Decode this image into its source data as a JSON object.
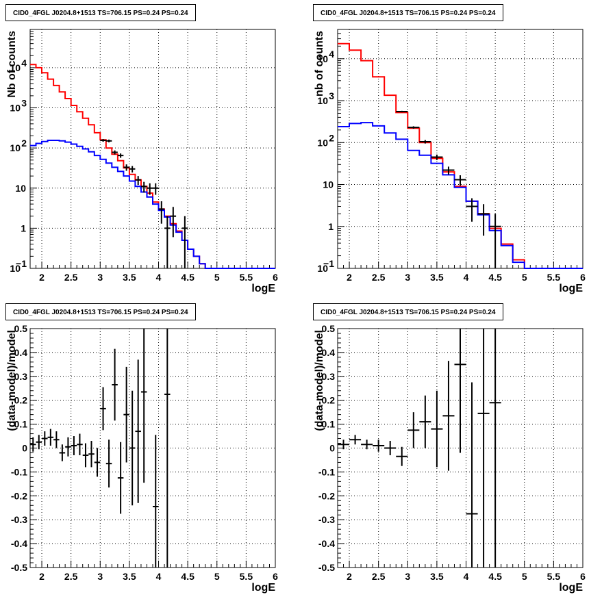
{
  "chart_data": [
    {
      "type": "line",
      "title": "CID0_4FGL J0204.8+1513 TS=706.15 PS=0.24 PS=0.24",
      "xlabel": "logE",
      "ylabel": "Nb of counts",
      "xlim": [
        1.8,
        6
      ],
      "ylim": [
        0.1,
        90000
      ],
      "yscale": "log",
      "grid": true,
      "xticks": [
        "2",
        "2.5",
        "3",
        "3.5",
        "4",
        "4.5",
        "5",
        "5.5",
        "6"
      ],
      "binwidth": 0.1,
      "series": [
        {
          "color": "#ff0000",
          "kind": "hist",
          "x": [
            1.8,
            1.9,
            2.0,
            2.1,
            2.2,
            2.3,
            2.4,
            2.5,
            2.6,
            2.7,
            2.8,
            2.9,
            3.0,
            3.1,
            3.2,
            3.3,
            3.4,
            3.5,
            3.6,
            3.7,
            3.8,
            3.9,
            4.0,
            4.1,
            4.2,
            4.3,
            4.4,
            4.5,
            4.6,
            4.7,
            4.8,
            4.9,
            5.0,
            5.1,
            5.2,
            5.3,
            5.4,
            5.5,
            5.6,
            5.7,
            5.8,
            5.9
          ],
          "values": [
            12000,
            10000,
            7500,
            5200,
            3600,
            2500,
            1700,
            1150,
            800,
            550,
            380,
            240,
            160,
            100,
            70,
            48,
            32,
            22,
            16,
            11,
            7.5,
            4.5,
            3,
            2,
            1.3,
            0.85,
            0.5,
            0.3,
            0.2,
            0.13,
            0.08,
            0.08,
            0.08,
            0.08,
            0.08,
            0.08,
            0.08,
            0.08,
            0.08,
            0.08,
            0.08,
            0.08
          ]
        },
        {
          "color": "#0000ff",
          "kind": "hist",
          "x": [
            1.8,
            1.9,
            2.0,
            2.1,
            2.2,
            2.3,
            2.4,
            2.5,
            2.6,
            2.7,
            2.8,
            2.9,
            3.0,
            3.1,
            3.2,
            3.3,
            3.4,
            3.5,
            3.6,
            3.7,
            3.8,
            3.9,
            4.0,
            4.1,
            4.2,
            4.3,
            4.4,
            4.5,
            4.6,
            4.7,
            4.8,
            4.9,
            5.0,
            5.1,
            5.2,
            5.3,
            5.4,
            5.5,
            5.6,
            5.7,
            5.8,
            5.9
          ],
          "values": [
            115,
            130,
            145,
            155,
            155,
            150,
            140,
            125,
            110,
            95,
            80,
            65,
            52,
            42,
            33,
            26,
            20,
            15,
            11,
            8,
            6,
            4,
            2.8,
            1.9,
            1.2,
            0.8,
            0.5,
            0.3,
            0.2,
            0.13,
            0.08,
            0.08,
            0.08,
            0.08,
            0.08,
            0.08,
            0.08,
            0.08,
            0.08,
            0.08,
            0.08,
            0.08
          ]
        },
        {
          "color": "#000000",
          "kind": "points",
          "x": [
            3.05,
            3.15,
            3.25,
            3.35,
            3.45,
            3.55,
            3.65,
            3.75,
            3.85,
            3.95,
            4.05,
            4.15,
            4.25,
            4.45
          ],
          "values": [
            155,
            150,
            78,
            65,
            33,
            30,
            16,
            11,
            10,
            10,
            3,
            1,
            2,
            1
          ],
          "err": [
            12,
            12,
            9,
            8,
            6,
            5.5,
            4,
            3.3,
            3.2,
            3.2,
            1.7,
            1,
            1.4,
            1
          ]
        }
      ]
    },
    {
      "type": "line",
      "title": "CID0_4FGL J0204.8+1513 TS=706.15 PS=0.24 PS=0.24",
      "xlabel": "logE",
      "ylabel": "nb of counts",
      "xlim": [
        1.8,
        6
      ],
      "ylim": [
        0.1,
        50000
      ],
      "yscale": "log",
      "grid": true,
      "xticks": [
        "2",
        "2.5",
        "3",
        "3.5",
        "4",
        "4.5",
        "5",
        "5.5",
        "6"
      ],
      "binwidth": 0.2,
      "series": [
        {
          "color": "#ff0000",
          "kind": "hist",
          "x": [
            1.8,
            2.0,
            2.2,
            2.4,
            2.6,
            2.8,
            3.0,
            3.2,
            3.4,
            3.6,
            3.8,
            4.0,
            4.2,
            4.4,
            4.6,
            4.8,
            5.0,
            5.2,
            5.4,
            5.6,
            5.8
          ],
          "values": [
            23000,
            16000,
            9000,
            3700,
            1350,
            520,
            220,
            100,
            42,
            20,
            9,
            4,
            2,
            0.9,
            0.38,
            0.16,
            0.08,
            0.08,
            0.08,
            0.08,
            0.08
          ]
        },
        {
          "color": "#0000ff",
          "kind": "hist",
          "x": [
            1.8,
            2.0,
            2.2,
            2.4,
            2.6,
            2.8,
            3.0,
            3.2,
            3.4,
            3.6,
            3.8,
            4.0,
            4.2,
            4.4,
            4.6,
            4.8,
            5.0,
            5.2,
            5.4,
            5.6,
            5.8
          ],
          "values": [
            240,
            285,
            300,
            250,
            170,
            120,
            65,
            50,
            32,
            17,
            8.5,
            4,
            1.9,
            0.8,
            0.35,
            0.14,
            0.08,
            0.08,
            0.08,
            0.08,
            0.08
          ]
        },
        {
          "color": "#000000",
          "kind": "points",
          "x": [
            2.9,
            3.1,
            3.3,
            3.5,
            3.7,
            3.9,
            4.1,
            4.3,
            4.5
          ],
          "values": [
            550,
            230,
            105,
            45,
            22,
            13,
            3,
            2,
            1
          ],
          "err": [
            23,
            15,
            10,
            6.7,
            4.7,
            3.6,
            1.7,
            1.4,
            1
          ]
        }
      ]
    },
    {
      "type": "scatter",
      "title": "CID0_4FGL J0204.8+1513 TS=706.15 PS=0.24 PS=0.24",
      "xlabel": "logE",
      "ylabel": "(data-model)/model",
      "xlim": [
        1.8,
        6
      ],
      "ylim": [
        -0.5,
        0.5
      ],
      "grid": true,
      "xticks": [
        "2",
        "2.5",
        "3",
        "3.5",
        "4",
        "4.5",
        "5",
        "5.5",
        "6"
      ],
      "yticks": [
        "-0.5",
        "-0.4",
        "-0.3",
        "-0.2",
        "-0.1",
        "0",
        "0.1",
        "0.2",
        "0.3",
        "0.4",
        "0.5"
      ],
      "binwidth": 0.1,
      "points": {
        "x": [
          1.85,
          1.95,
          2.05,
          2.15,
          2.25,
          2.35,
          2.45,
          2.55,
          2.65,
          2.75,
          2.85,
          2.95,
          3.05,
          3.15,
          3.25,
          3.35,
          3.45,
          3.55,
          3.65,
          3.75,
          3.95,
          4.15
        ],
        "values": [
          0.015,
          0.025,
          0.04,
          0.045,
          0.035,
          -0.02,
          0.005,
          0.01,
          0.015,
          -0.03,
          -0.025,
          -0.06,
          0.165,
          -0.065,
          0.265,
          -0.125,
          0.14,
          0.0,
          0.07,
          0.235,
          -0.245,
          0.225
        ],
        "err": [
          0.03,
          0.03,
          0.03,
          0.035,
          0.035,
          0.035,
          0.04,
          0.04,
          0.045,
          0.05,
          0.055,
          0.06,
          0.09,
          0.1,
          0.15,
          0.15,
          0.2,
          0.24,
          0.3,
          0.38,
          0.3,
          0.9
        ]
      }
    },
    {
      "type": "scatter",
      "title": "CID0_4FGL J0204.8+1513 TS=706.15 PS=0.24 PS=0.24",
      "xlabel": "logE",
      "ylabel": "(data-model)/model",
      "xlim": [
        1.8,
        6
      ],
      "ylim": [
        -0.5,
        0.5
      ],
      "grid": true,
      "xticks": [
        "2",
        "2.5",
        "3",
        "3.5",
        "4",
        "4.5",
        "5",
        "5.5",
        "6"
      ],
      "yticks": [
        "-0.5",
        "-0.4",
        "-0.3",
        "-0.2",
        "-0.1",
        "0",
        "0.1",
        "0.2",
        "0.3",
        "0.4",
        "0.5"
      ],
      "binwidth": 0.2,
      "points": {
        "x": [
          1.9,
          2.1,
          2.3,
          2.5,
          2.7,
          2.9,
          3.1,
          3.3,
          3.5,
          3.7,
          3.9,
          4.1,
          4.3,
          4.5
        ],
        "values": [
          0.015,
          0.035,
          0.015,
          0.01,
          0.0,
          -0.035,
          0.075,
          0.11,
          0.08,
          0.135,
          0.35,
          -0.275,
          0.145,
          0.19
        ],
        "err": [
          0.02,
          0.02,
          0.02,
          0.025,
          0.03,
          0.04,
          0.075,
          0.11,
          0.16,
          0.23,
          0.37,
          0.55,
          0.9,
          0.9
        ]
      }
    }
  ]
}
